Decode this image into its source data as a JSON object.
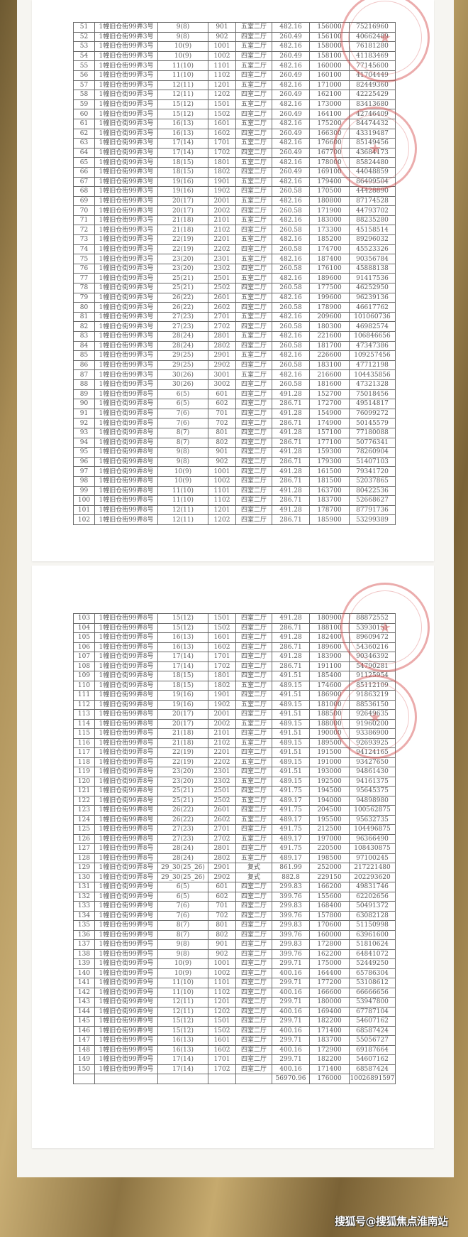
{
  "watermark": "搜狐号@搜狐焦点淮南站",
  "colors": {
    "stamp": "#d24646",
    "background": "#a88c55",
    "table_text": "#5a5a5a"
  },
  "page1": {
    "rows": [
      [
        "51",
        "1幢旧仓街99弄3号",
        "9(8)",
        "901",
        "五室二厅",
        "482.16",
        "156000",
        "75216960"
      ],
      [
        "52",
        "1幢旧仓街99弄3号",
        "9(8)",
        "902",
        "四室二厅",
        "260.49",
        "156100",
        "40662489"
      ],
      [
        "53",
        "1幢旧仓街99弄3号",
        "10(9)",
        "1001",
        "五室二厅",
        "482.16",
        "158000",
        "76181280"
      ],
      [
        "54",
        "1幢旧仓街99弄3号",
        "10(9)",
        "1002",
        "四室二厅",
        "260.49",
        "158100",
        "41183469"
      ],
      [
        "55",
        "1幢旧仓街99弄3号",
        "11(10)",
        "1101",
        "五室二厅",
        "482.16",
        "160000",
        "77145600"
      ],
      [
        "56",
        "1幢旧仓街99弄3号",
        "11(10)",
        "1102",
        "四室二厅",
        "260.49",
        "160100",
        "41704449"
      ],
      [
        "57",
        "1幢旧仓街99弄3号",
        "12(11)",
        "1201",
        "五室二厅",
        "482.16",
        "171000",
        "82449360"
      ],
      [
        "58",
        "1幢旧仓街99弄3号",
        "12(11)",
        "1202",
        "四室二厅",
        "260.49",
        "162100",
        "42225429"
      ],
      [
        "59",
        "1幢旧仓街99弄3号",
        "15(12)",
        "1501",
        "五室二厅",
        "482.16",
        "173000",
        "83413680"
      ],
      [
        "60",
        "1幢旧仓街99弄3号",
        "15(12)",
        "1502",
        "四室二厅",
        "260.49",
        "164100",
        "42746409"
      ],
      [
        "61",
        "1幢旧仓街99弄3号",
        "16(13)",
        "1601",
        "五室二厅",
        "482.16",
        "175200",
        "84474432"
      ],
      [
        "62",
        "1幢旧仓街99弄3号",
        "16(13)",
        "1602",
        "四室二厅",
        "260.49",
        "166300",
        "43319487"
      ],
      [
        "63",
        "1幢旧仓街99弄3号",
        "17(14)",
        "1701",
        "五室二厅",
        "482.16",
        "176600",
        "85149456"
      ],
      [
        "64",
        "1幢旧仓街99弄3号",
        "17(14)",
        "1702",
        "四室二厅",
        "260.49",
        "167700",
        "43684173"
      ],
      [
        "65",
        "1幢旧仓街99弄3号",
        "18(15)",
        "1801",
        "五室二厅",
        "482.16",
        "178000",
        "85824480"
      ],
      [
        "66",
        "1幢旧仓街99弄3号",
        "18(15)",
        "1802",
        "四室二厅",
        "260.49",
        "169100",
        "44048859"
      ],
      [
        "67",
        "1幢旧仓街99弄3号",
        "19(16)",
        "1901",
        "五室二厅",
        "482.16",
        "179400",
        "86499504"
      ],
      [
        "68",
        "1幢旧仓街99弄3号",
        "19(16)",
        "1902",
        "四室二厅",
        "260.58",
        "170500",
        "44428890"
      ],
      [
        "69",
        "1幢旧仓街99弄3号",
        "20(17)",
        "2001",
        "五室二厅",
        "482.16",
        "180800",
        "87174528"
      ],
      [
        "70",
        "1幢旧仓街99弄3号",
        "20(17)",
        "2002",
        "四室二厅",
        "260.58",
        "171900",
        "44793702"
      ],
      [
        "71",
        "1幢旧仓街99弄3号",
        "21(18)",
        "2101",
        "五室二厅",
        "482.16",
        "183000",
        "88235280"
      ],
      [
        "72",
        "1幢旧仓街99弄3号",
        "21(18)",
        "2102",
        "四室二厅",
        "260.58",
        "173300",
        "45158514"
      ],
      [
        "73",
        "1幢旧仓街99弄3号",
        "22(19)",
        "2201",
        "五室二厅",
        "482.16",
        "185200",
        "89296032"
      ],
      [
        "74",
        "1幢旧仓街99弄3号",
        "22(19)",
        "2202",
        "四室二厅",
        "260.58",
        "174700",
        "45523326"
      ],
      [
        "75",
        "1幢旧仓街99弄3号",
        "23(20)",
        "2301",
        "五室二厅",
        "482.16",
        "187400",
        "90356784"
      ],
      [
        "76",
        "1幢旧仓街99弄3号",
        "23(20)",
        "2302",
        "四室二厅",
        "260.58",
        "176100",
        "45888138"
      ],
      [
        "77",
        "1幢旧仓街99弄3号",
        "25(21)",
        "2501",
        "五室二厅",
        "482.16",
        "189600",
        "91417536"
      ],
      [
        "78",
        "1幢旧仓街99弄3号",
        "25(21)",
        "2502",
        "四室二厅",
        "260.58",
        "177500",
        "46252950"
      ],
      [
        "79",
        "1幢旧仓街99弄3号",
        "26(22)",
        "2601",
        "五室二厅",
        "482.16",
        "199600",
        "96239136"
      ],
      [
        "80",
        "1幢旧仓街99弄3号",
        "26(22)",
        "2602",
        "四室二厅",
        "260.58",
        "178900",
        "46617762"
      ],
      [
        "81",
        "1幢旧仓街99弄3号",
        "27(23)",
        "2701",
        "五室二厅",
        "482.16",
        "209600",
        "101060736"
      ],
      [
        "82",
        "1幢旧仓街99弄3号",
        "27(23)",
        "2702",
        "四室二厅",
        "260.58",
        "180300",
        "46982574"
      ],
      [
        "83",
        "1幢旧仓街99弄3号",
        "28(24)",
        "2801",
        "五室二厅",
        "482.16",
        "221600",
        "106846656"
      ],
      [
        "84",
        "1幢旧仓街99弄3号",
        "28(24)",
        "2802",
        "四室二厅",
        "260.58",
        "181700",
        "47347386"
      ],
      [
        "85",
        "1幢旧仓街99弄3号",
        "29(25)",
        "2901",
        "五室二厅",
        "482.16",
        "226600",
        "109257456"
      ],
      [
        "86",
        "1幢旧仓街99弄3号",
        "29(25)",
        "2902",
        "四室二厅",
        "260.58",
        "183100",
        "47712198"
      ],
      [
        "87",
        "1幢旧仓街99弄3号",
        "30(26)",
        "3001",
        "五室二厅",
        "482.16",
        "216600",
        "104435856"
      ],
      [
        "88",
        "1幢旧仓街99弄3号",
        "30(26)",
        "3002",
        "四室二厅",
        "260.58",
        "181600",
        "47321328"
      ],
      [
        "89",
        "1幢旧仓街99弄8号",
        "6(5)",
        "601",
        "四室二厅",
        "491.28",
        "152700",
        "75018456"
      ],
      [
        "90",
        "1幢旧仓街99弄8号",
        "6(5)",
        "602",
        "四室二厅",
        "286.71",
        "172700",
        "49514817"
      ],
      [
        "91",
        "1幢旧仓街99弄8号",
        "7(6)",
        "701",
        "四室二厅",
        "491.28",
        "154900",
        "76099272"
      ],
      [
        "92",
        "1幢旧仓街99弄8号",
        "7(6)",
        "702",
        "四室二厅",
        "286.71",
        "174900",
        "50145579"
      ],
      [
        "93",
        "1幢旧仓街99弄8号",
        "8(7)",
        "801",
        "四室二厅",
        "491.28",
        "157100",
        "77180088"
      ],
      [
        "94",
        "1幢旧仓街99弄8号",
        "8(7)",
        "802",
        "四室二厅",
        "286.71",
        "177100",
        "50776341"
      ],
      [
        "95",
        "1幢旧仓街99弄8号",
        "9(8)",
        "901",
        "四室二厅",
        "491.28",
        "159300",
        "78260904"
      ],
      [
        "96",
        "1幢旧仓街99弄8号",
        "9(8)",
        "902",
        "四室二厅",
        "286.71",
        "179300",
        "51407103"
      ],
      [
        "97",
        "1幢旧仓街99弄8号",
        "10(9)",
        "1001",
        "四室二厅",
        "491.28",
        "161500",
        "79341720"
      ],
      [
        "98",
        "1幢旧仓街99弄8号",
        "10(9)",
        "1002",
        "四室二厅",
        "286.71",
        "181500",
        "52037865"
      ],
      [
        "99",
        "1幢旧仓街99弄8号",
        "11(10)",
        "1101",
        "四室二厅",
        "491.28",
        "163700",
        "80422536"
      ],
      [
        "100",
        "1幢旧仓街99弄8号",
        "11(10)",
        "1102",
        "四室二厅",
        "286.71",
        "183700",
        "52668627"
      ],
      [
        "101",
        "1幢旧仓街99弄8号",
        "12(11)",
        "1201",
        "四室二厅",
        "491.28",
        "178700",
        "87791736"
      ],
      [
        "102",
        "1幢旧仓街99弄8号",
        "12(11)",
        "1202",
        "四室二厅",
        "286.71",
        "185900",
        "53299389"
      ]
    ]
  },
  "page2": {
    "rows": [
      [
        "103",
        "1幢旧仓街99弄8号",
        "15(12)",
        "1501",
        "四室二厅",
        "491.28",
        "180900",
        "88872552"
      ],
      [
        "104",
        "1幢旧仓街99弄8号",
        "15(12)",
        "1502",
        "四室二厅",
        "286.71",
        "188100",
        "53930151"
      ],
      [
        "105",
        "1幢旧仓街99弄8号",
        "16(13)",
        "1601",
        "四室二厅",
        "491.28",
        "182400",
        "89609472"
      ],
      [
        "106",
        "1幢旧仓街99弄8号",
        "16(13)",
        "1602",
        "四室二厅",
        "286.71",
        "189600",
        "54360216"
      ],
      [
        "107",
        "1幢旧仓街99弄8号",
        "17(14)",
        "1701",
        "四室二厅",
        "491.28",
        "183900",
        "90346392"
      ],
      [
        "108",
        "1幢旧仓街99弄8号",
        "17(14)",
        "1702",
        "四室二厅",
        "286.71",
        "191100",
        "54790281"
      ],
      [
        "109",
        "1幢旧仓街99弄8号",
        "18(15)",
        "1801",
        "四室二厅",
        "491.51",
        "185400",
        "91125954"
      ],
      [
        "110",
        "1幢旧仓街99弄8号",
        "18(15)",
        "1802",
        "五室二厅",
        "489.15",
        "174600",
        "85112109"
      ],
      [
        "111",
        "1幢旧仓街99弄8号",
        "19(16)",
        "1901",
        "四室二厅",
        "491.51",
        "186900",
        "91863219"
      ],
      [
        "112",
        "1幢旧仓街99弄8号",
        "19(16)",
        "1902",
        "五室二厅",
        "489.15",
        "181000",
        "88536150"
      ],
      [
        "113",
        "1幢旧仓街99弄8号",
        "20(17)",
        "2001",
        "四室二厅",
        "491.51",
        "188500",
        "92649635"
      ],
      [
        "114",
        "1幢旧仓街99弄8号",
        "20(17)",
        "2002",
        "五室二厅",
        "489.15",
        "188000",
        "91960200"
      ],
      [
        "115",
        "1幢旧仓街99弄8号",
        "21(18)",
        "2101",
        "四室二厅",
        "491.51",
        "190000",
        "93386900"
      ],
      [
        "116",
        "1幢旧仓街99弄8号",
        "21(18)",
        "2102",
        "五室二厅",
        "489.15",
        "189500",
        "92693925"
      ],
      [
        "117",
        "1幢旧仓街99弄8号",
        "22(19)",
        "2201",
        "四室二厅",
        "491.51",
        "191500",
        "94124165"
      ],
      [
        "118",
        "1幢旧仓街99弄8号",
        "22(19)",
        "2202",
        "五室二厅",
        "489.15",
        "191000",
        "93427650"
      ],
      [
        "119",
        "1幢旧仓街99弄8号",
        "23(20)",
        "2301",
        "四室二厅",
        "491.51",
        "193000",
        "94861430"
      ],
      [
        "120",
        "1幢旧仓街99弄8号",
        "23(20)",
        "2302",
        "五室二厅",
        "489.15",
        "192500",
        "94161375"
      ],
      [
        "121",
        "1幢旧仓街99弄8号",
        "25(21)",
        "2501",
        "四室二厅",
        "491.75",
        "194500",
        "95645375"
      ],
      [
        "122",
        "1幢旧仓街99弄8号",
        "25(21)",
        "2502",
        "五室二厅",
        "489.17",
        "194000",
        "94898980"
      ],
      [
        "123",
        "1幢旧仓街99弄8号",
        "26(22)",
        "2601",
        "四室二厅",
        "491.75",
        "204500",
        "100562875"
      ],
      [
        "124",
        "1幢旧仓街99弄8号",
        "26(22)",
        "2602",
        "五室二厅",
        "489.17",
        "195500",
        "95632735"
      ],
      [
        "125",
        "1幢旧仓街99弄8号",
        "27(23)",
        "2701",
        "四室二厅",
        "491.75",
        "212500",
        "104496875"
      ],
      [
        "126",
        "1幢旧仓街99弄8号",
        "27(23)",
        "2702",
        "五室二厅",
        "489.17",
        "197000",
        "96366490"
      ],
      [
        "127",
        "1幢旧仓街99弄8号",
        "28(24)",
        "2801",
        "四室二厅",
        "491.75",
        "220500",
        "108430875"
      ],
      [
        "128",
        "1幢旧仓街99弄8号",
        "28(24)",
        "2802",
        "五室二厅",
        "489.17",
        "198500",
        "97100245"
      ],
      [
        "129",
        "1幢旧仓街99弄8号",
        "29_30(25_26)",
        "2901",
        "复式",
        "861.99",
        "252000",
        "217221480"
      ],
      [
        "130",
        "1幢旧仓街99弄8号",
        "29_30(25_26)",
        "2902",
        "复式",
        "882.8",
        "229150",
        "202293620"
      ],
      [
        "131",
        "1幢旧仓街99弄9号",
        "6(5)",
        "601",
        "四室二厅",
        "299.83",
        "166200",
        "49831746"
      ],
      [
        "132",
        "1幢旧仓街99弄9号",
        "6(5)",
        "602",
        "四室二厅",
        "399.76",
        "155600",
        "62202656"
      ],
      [
        "133",
        "1幢旧仓街99弄9号",
        "7(6)",
        "701",
        "四室二厅",
        "299.83",
        "168400",
        "50491372"
      ],
      [
        "134",
        "1幢旧仓街99弄9号",
        "7(6)",
        "702",
        "四室二厅",
        "399.76",
        "157800",
        "63082128"
      ],
      [
        "135",
        "1幢旧仓街99弄9号",
        "8(7)",
        "801",
        "四室二厅",
        "299.83",
        "170600",
        "51150998"
      ],
      [
        "136",
        "1幢旧仓街99弄9号",
        "8(7)",
        "802",
        "四室二厅",
        "399.76",
        "160000",
        "63961600"
      ],
      [
        "137",
        "1幢旧仓街99弄9号",
        "9(8)",
        "901",
        "四室二厅",
        "299.83",
        "172800",
        "51810624"
      ],
      [
        "138",
        "1幢旧仓街99弄9号",
        "9(8)",
        "902",
        "四室二厅",
        "399.76",
        "162200",
        "64841072"
      ],
      [
        "139",
        "1幢旧仓街99弄9号",
        "10(9)",
        "1001",
        "四室二厅",
        "299.71",
        "175000",
        "52449250"
      ],
      [
        "140",
        "1幢旧仓街99弄9号",
        "10(9)",
        "1002",
        "四室二厅",
        "400.16",
        "164400",
        "65786304"
      ],
      [
        "141",
        "1幢旧仓街99弄9号",
        "11(10)",
        "1101",
        "四室二厅",
        "299.71",
        "177200",
        "53108612"
      ],
      [
        "142",
        "1幢旧仓街99弄9号",
        "11(10)",
        "1102",
        "四室二厅",
        "400.16",
        "166600",
        "66666656"
      ],
      [
        "143",
        "1幢旧仓街99弄9号",
        "12(11)",
        "1201",
        "四室二厅",
        "299.71",
        "180000",
        "53947800"
      ],
      [
        "144",
        "1幢旧仓街99弄9号",
        "12(11)",
        "1202",
        "四室二厅",
        "400.16",
        "169400",
        "67787104"
      ],
      [
        "145",
        "1幢旧仓街99弄9号",
        "15(12)",
        "1501",
        "四室二厅",
        "299.71",
        "182200",
        "54607162"
      ],
      [
        "146",
        "1幢旧仓街99弄9号",
        "15(12)",
        "1502",
        "四室二厅",
        "400.16",
        "171400",
        "68587424"
      ],
      [
        "147",
        "1幢旧仓街99弄9号",
        "16(13)",
        "1601",
        "四室二厅",
        "299.71",
        "183700",
        "55056727"
      ],
      [
        "148",
        "1幢旧仓街99弄9号",
        "16(13)",
        "1602",
        "四室二厅",
        "400.16",
        "172900",
        "69187664"
      ],
      [
        "149",
        "1幢旧仓街99弄9号",
        "17(14)",
        "1701",
        "四室二厅",
        "299.71",
        "182200",
        "54607162"
      ],
      [
        "150",
        "1幢旧仓街99弄9号",
        "17(14)",
        "1702",
        "四室二厅",
        "400.16",
        "171400",
        "68587424"
      ],
      [
        "",
        "",
        "",
        "",
        "",
        "56970.96",
        "176000",
        "10026891597"
      ]
    ]
  }
}
